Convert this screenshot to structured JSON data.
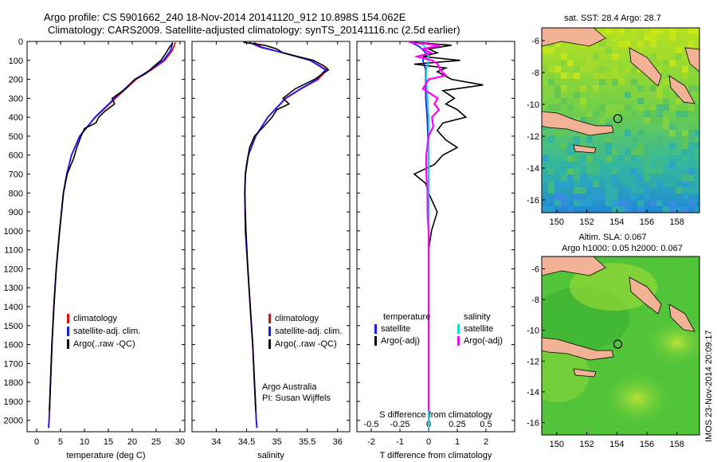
{
  "titles": {
    "line1": "Argo profile: CS 5901662_240 18-Nov-2014 20141120_912 10.898S 154.062E",
    "line2": "Climatology: CARS2009. Satellite-adjusted climatology: synTS_20141116.nc (2.5d earlier)"
  },
  "colors": {
    "climatology": "#ff0000",
    "satellite": "#1a1aff",
    "argo": "#000000",
    "salinity_sat": "#00e0e0",
    "salinity_argo": "#ff00ff"
  },
  "chart_data": [
    {
      "id": "temperature",
      "type": "line",
      "xlabel": "temperature (deg C)",
      "ylabel": "",
      "xlim": [
        -2,
        31
      ],
      "ylim": [
        2060,
        0
      ],
      "x_ticks": [
        0,
        5,
        10,
        15,
        20,
        25,
        30
      ],
      "y_ticks": [
        0,
        100,
        200,
        300,
        400,
        500,
        600,
        700,
        800,
        900,
        1000,
        1100,
        1200,
        1300,
        1400,
        1500,
        1600,
        1700,
        1800,
        1900,
        2000
      ],
      "legend": [
        "climatology",
        "satellite-adj. clim.",
        "Argo(..raw -QC)"
      ],
      "series": [
        {
          "name": "climatology",
          "depth": [
            5,
            20,
            50,
            100,
            150,
            200,
            300,
            400,
            500,
            600,
            700,
            800,
            1000,
            1200,
            1400,
            1600,
            1800,
            2000,
            2040
          ],
          "values": [
            29.0,
            28.8,
            28.3,
            26.8,
            24.0,
            20.8,
            16.5,
            12.3,
            9.0,
            7.3,
            6.3,
            5.6,
            4.8,
            4.1,
            3.6,
            3.2,
            2.9,
            2.6,
            2.5
          ]
        },
        {
          "name": "satellite-adj. clim.",
          "depth": [
            5,
            20,
            50,
            100,
            150,
            200,
            300,
            400,
            500,
            600,
            700,
            800,
            1000,
            1200,
            1400,
            1600,
            1800,
            2000,
            2040
          ],
          "values": [
            28.4,
            28.3,
            28.0,
            26.5,
            23.8,
            20.6,
            16.3,
            12.2,
            9.0,
            7.3,
            6.3,
            5.6,
            4.8,
            4.1,
            3.6,
            3.2,
            2.9,
            2.6,
            2.5
          ]
        },
        {
          "name": "Argo(..raw -QC)",
          "depth": [
            5,
            15,
            30,
            60,
            100,
            130,
            170,
            200,
            250,
            300,
            330,
            370,
            400,
            430,
            460,
            500,
            560,
            620,
            700,
            800,
            1000,
            1200,
            1400,
            1600,
            1800,
            1950
          ],
          "values": [
            28.4,
            28.3,
            27.8,
            27.1,
            26.0,
            24.6,
            22.8,
            20.5,
            18.6,
            15.8,
            16.3,
            14.2,
            13.0,
            12.4,
            10.0,
            9.3,
            8.4,
            7.7,
            6.4,
            5.6,
            4.8,
            4.1,
            3.6,
            3.2,
            2.9,
            2.7
          ]
        }
      ]
    },
    {
      "id": "salinity",
      "type": "line",
      "xlabel": "salinity",
      "ylabel": "",
      "xlim": [
        33.6,
        36.2
      ],
      "ylim": [
        2060,
        0
      ],
      "x_ticks": [
        34,
        34.5,
        35,
        35.5,
        36
      ],
      "legend": [
        "climatology",
        "satellite-adj. clim.",
        "Argo(..raw -QC)"
      ],
      "annotation": [
        "Argo Australia",
        "PI: Susan Wijffels"
      ],
      "series": [
        {
          "name": "climatology",
          "depth": [
            5,
            30,
            60,
            100,
            150,
            200,
            250,
            300,
            400,
            500,
            600,
            700,
            800,
            1000,
            1200,
            1400,
            1600,
            1800,
            2000,
            2040
          ],
          "values": [
            34.62,
            34.75,
            35.1,
            35.55,
            35.82,
            35.68,
            35.4,
            35.15,
            34.85,
            34.65,
            34.53,
            34.48,
            34.47,
            34.48,
            34.52,
            34.56,
            34.6,
            34.63,
            34.66,
            34.67
          ]
        },
        {
          "name": "satellite-adj. clim.",
          "depth": [
            5,
            30,
            60,
            100,
            150,
            200,
            250,
            300,
            400,
            500,
            600,
            700,
            800,
            1000,
            1200,
            1400,
            1600,
            1800,
            2000,
            2040
          ],
          "values": [
            34.55,
            34.72,
            35.1,
            35.55,
            35.8,
            35.66,
            35.39,
            35.14,
            34.85,
            34.65,
            34.53,
            34.48,
            34.47,
            34.48,
            34.52,
            34.56,
            34.6,
            34.63,
            34.66,
            34.67
          ]
        },
        {
          "name": "Argo(..raw -QC)",
          "depth": [
            5,
            20,
            40,
            60,
            100,
            130,
            150,
            200,
            250,
            300,
            330,
            360,
            400,
            450,
            500,
            560,
            650,
            700,
            800,
            900,
            1000,
            1200,
            1400,
            1600,
            1800,
            1950
          ],
          "values": [
            34.45,
            34.8,
            35.0,
            35.1,
            35.6,
            35.78,
            35.85,
            35.62,
            35.3,
            35.1,
            35.2,
            35.0,
            34.92,
            34.78,
            34.63,
            34.55,
            34.5,
            34.48,
            34.47,
            34.48,
            34.49,
            34.52,
            34.56,
            34.6,
            34.63,
            34.65
          ]
        }
      ]
    },
    {
      "id": "differences",
      "type": "line",
      "xlabel": "T difference from climatology",
      "xlabel2": "S difference from climatology",
      "xlim": [
        -2.5,
        3.0
      ],
      "ylim": [
        2060,
        0
      ],
      "x_ticks": [
        -2,
        -1,
        0,
        1,
        2
      ],
      "x_ticks_top": [
        -0.5,
        -0.25,
        0,
        0.25,
        0.5
      ],
      "legend_headers": [
        "temperature",
        "salinity"
      ],
      "legend": [
        "satellite",
        "Argo(-adj)",
        "satellite",
        "Argo(-adj)"
      ],
      "series": [
        {
          "name": "T satellite",
          "depth": [
            5,
            30,
            60,
            100,
            150,
            200,
            300,
            400,
            600,
            800,
            1200,
            1600,
            2000,
            2040
          ],
          "values": [
            -0.6,
            -0.3,
            -0.1,
            -0.2,
            -0.1,
            -0.1,
            -0.1,
            -0.05,
            0,
            0,
            0,
            0,
            0,
            0
          ]
        },
        {
          "name": "T Argo(-adj)",
          "depth": [
            5,
            20,
            40,
            60,
            80,
            100,
            120,
            140,
            160,
            200,
            230,
            260,
            300,
            330,
            360,
            400,
            430,
            470,
            520,
            560,
            600,
            650,
            700,
            750,
            800,
            900,
            1000,
            1100,
            1200,
            1400,
            1600,
            1800,
            1950
          ],
          "values": [
            -0.5,
            0.8,
            0.0,
            0.3,
            -0.2,
            1.1,
            -0.5,
            0.6,
            0.3,
            0.8,
            1.9,
            0.5,
            0.9,
            0.6,
            1.0,
            1.3,
            0.5,
            0.3,
            0.6,
            1.0,
            0.5,
            0.2,
            -0.5,
            -0.1,
            0.0,
            0.3,
            0.1,
            0.0,
            0.0,
            0.0,
            0.0,
            0.0,
            0.0
          ]
        },
        {
          "name": "S satellite",
          "depth": [
            5,
            30,
            60,
            100,
            150,
            200,
            300,
            400,
            600,
            800,
            1200,
            1600,
            2000,
            2040
          ],
          "values": [
            -0.08,
            -0.03,
            -0.01,
            0.0,
            -0.02,
            -0.02,
            -0.01,
            0.0,
            0.0,
            0.0,
            0.0,
            0.0,
            0.0,
            0.0
          ]
        },
        {
          "name": "S Argo(-adj)",
          "depth": [
            5,
            20,
            40,
            60,
            80,
            100,
            120,
            150,
            180,
            200,
            250,
            300,
            330,
            360,
            400,
            450,
            500,
            600,
            700,
            800,
            900,
            1000,
            1100,
            1200,
            1400,
            1600,
            1800,
            1950
          ],
          "values": [
            -0.17,
            0.1,
            -0.05,
            0.02,
            -0.1,
            0.03,
            0.08,
            0.1,
            0.15,
            0.0,
            -0.05,
            0.08,
            0.05,
            0.09,
            0.03,
            0.04,
            0.0,
            -0.02,
            -0.02,
            -0.01,
            -0.01,
            0.0,
            0.0,
            0.0,
            0.0,
            0.0,
            0.0,
            0.0
          ]
        }
      ]
    },
    {
      "id": "sst_map",
      "type": "heatmap",
      "title": "sat. SST: 28.4  Argo: 28.7",
      "x_ticks": [
        "150",
        "152",
        "154",
        "156",
        "158"
      ],
      "y_ticks": [
        "-6",
        "-8",
        "-10",
        "-12",
        "-14",
        "-16"
      ],
      "xlim": [
        149,
        159.5
      ],
      "ylim": [
        -16.8,
        -5.2
      ],
      "marker": {
        "lon": 154.062,
        "lat": -10.898
      }
    },
    {
      "id": "sla_map",
      "type": "heatmap",
      "title": "Altim. SLA: 0.067",
      "subtitle": "Argo h1000: 0.05 h2000: 0.067",
      "x_ticks": [
        "150",
        "152",
        "154",
        "156",
        "158"
      ],
      "y_ticks": [
        "-6",
        "-8",
        "-10",
        "-12",
        "-14",
        "-16"
      ],
      "xlim": [
        149,
        159.5
      ],
      "ylim": [
        -16.8,
        -5.2
      ],
      "marker": {
        "lon": 154.062,
        "lat": -10.898
      }
    }
  ],
  "stamp": "IMOS 23-Nov-2014 20:09:17"
}
